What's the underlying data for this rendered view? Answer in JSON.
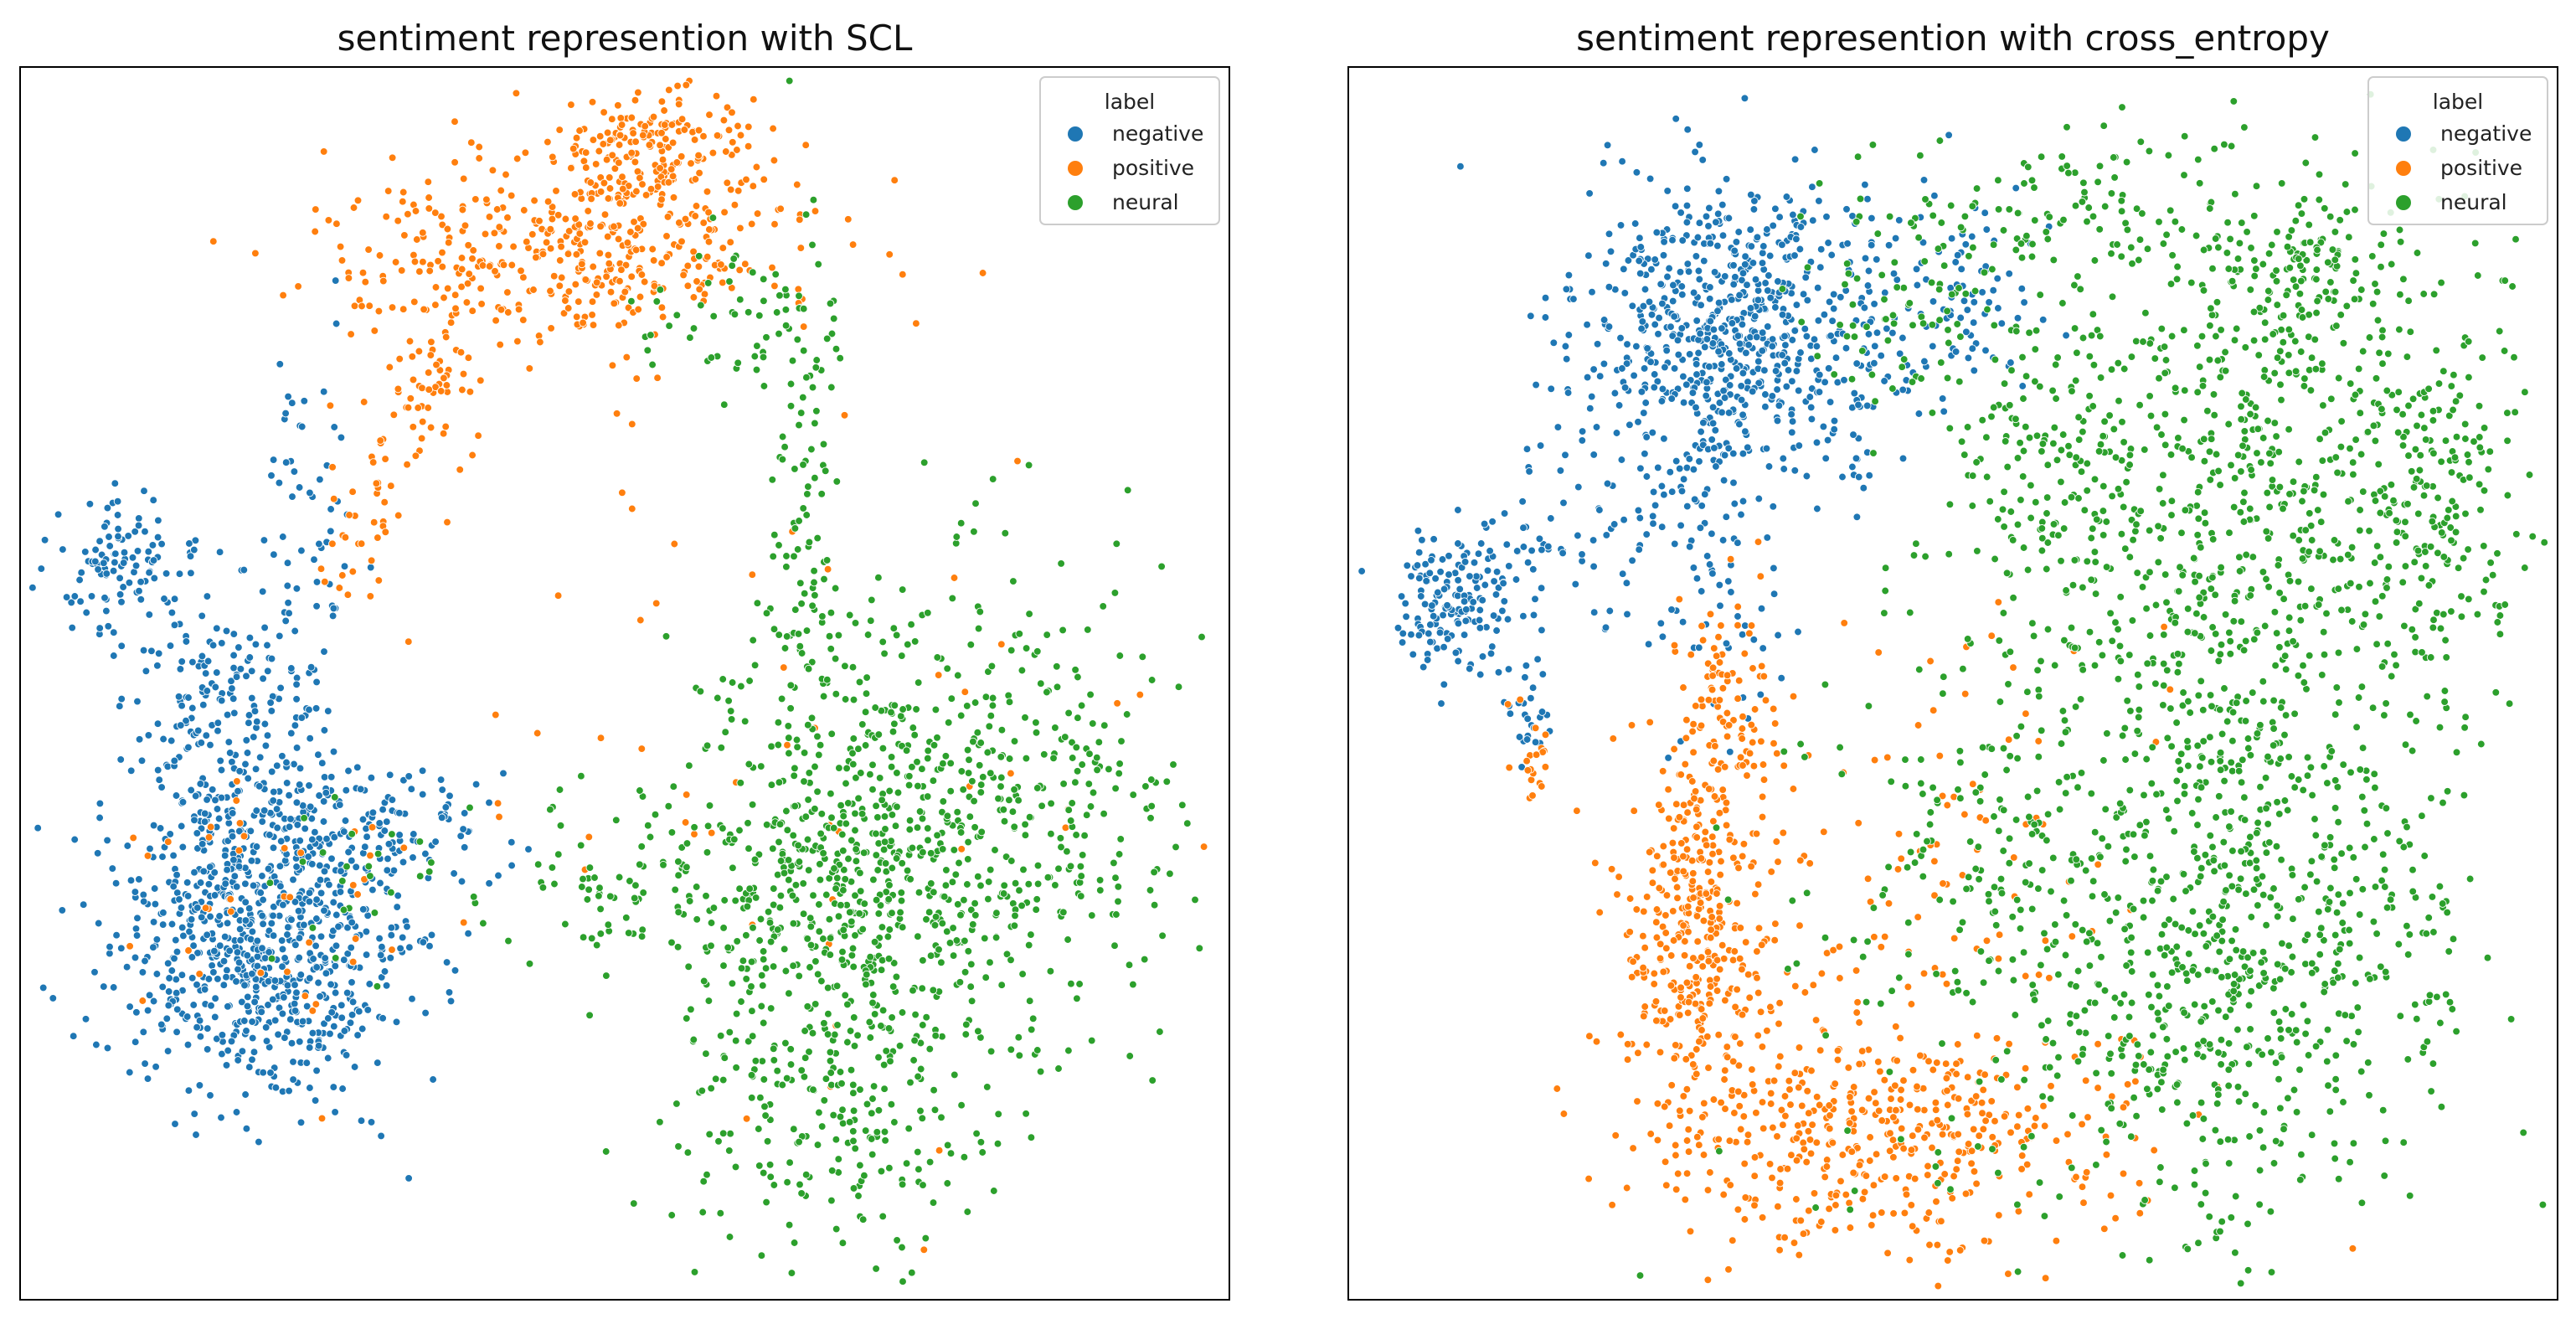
{
  "chart_data": [
    {
      "type": "scatter",
      "title": "sentiment represention with SCL",
      "xlabel": "",
      "ylabel": "",
      "xlim": [
        0,
        100
      ],
      "ylim": [
        0,
        100
      ],
      "grid": false,
      "ticks": "none",
      "legend": {
        "title": "label",
        "placement": "top-right",
        "entries": [
          {
            "name": "negative",
            "color": "#1f77b4"
          },
          {
            "name": "positive",
            "color": "#ff7f0e"
          },
          {
            "name": "neural",
            "color": "#2ca02c"
          }
        ]
      },
      "series": [
        {
          "name": "negative",
          "color": "#1f77b4",
          "clusters": [
            [
              8,
              59,
              3,
              3,
              110
            ],
            [
              20,
              28,
              6,
              6,
              700
            ],
            [
              16,
              45,
              4,
              8,
              260
            ],
            [
              29,
              38,
              6,
              3,
              160
            ],
            [
              24,
              60,
              2,
              10,
              70
            ]
          ]
        },
        {
          "name": "positive",
          "color": "#ff7f0e",
          "clusters": [
            [
              45,
              85,
              10,
              4,
              420
            ],
            [
              52,
              93,
              4,
              3,
              200
            ],
            [
              34,
              73,
              2,
              3,
              50
            ],
            [
              28,
              63,
              2,
              5,
              40
            ],
            [
              21,
              33,
              6,
              6,
              40
            ],
            [
              63,
              45,
              15,
              15,
              55
            ]
          ]
        },
        {
          "name": "neural",
          "color": "#2ca02c",
          "clusters": [
            [
              79,
              40,
              9,
              9,
              480
            ],
            [
              68,
              22,
              7,
              10,
              480
            ],
            [
              65,
              66,
              1.5,
              12,
              90
            ],
            [
              59,
              80,
              4,
              3,
              50
            ],
            [
              50,
              35,
              5,
              4,
              80
            ],
            [
              66,
              40,
              6,
              9,
              200
            ],
            [
              28,
              33,
              4,
              4,
              25
            ]
          ]
        }
      ]
    },
    {
      "type": "scatter",
      "title": "sentiment represention with cross_entropy",
      "xlabel": "",
      "ylabel": "",
      "xlim": [
        0,
        100
      ],
      "ylim": [
        0,
        100
      ],
      "grid": false,
      "ticks": "none",
      "legend": {
        "title": "label",
        "placement": "top-right",
        "entries": [
          {
            "name": "negative",
            "color": "#1f77b4"
          },
          {
            "name": "positive",
            "color": "#ff7f0e"
          },
          {
            "name": "neural",
            "color": "#2ca02c"
          }
        ]
      },
      "series": [
        {
          "name": "negative",
          "color": "#1f77b4",
          "clusters": [
            [
              32,
              78,
              7,
              6,
              700
            ],
            [
              9,
              57,
              2.5,
              3,
              160
            ],
            [
              16,
              62,
              2.5,
              3,
              40
            ],
            [
              15,
              47,
              1,
              2,
              25
            ],
            [
              28,
              60,
              4,
              6,
              100
            ],
            [
              50,
              81,
              5,
              5,
              90
            ]
          ]
        },
        {
          "name": "positive",
          "color": "#ff7f0e",
          "clusters": [
            [
              29,
              30,
              3,
              7,
              350
            ],
            [
              44,
              13,
              10,
              5,
              450
            ],
            [
              31,
              47,
              2,
              5,
              100
            ],
            [
              15,
              44,
              1,
              2,
              20
            ],
            [
              47,
              36,
              8,
              10,
              120
            ]
          ]
        },
        {
          "name": "neural",
          "color": "#2ca02c",
          "clusters": [
            [
              75,
              32,
              8,
              12,
              650
            ],
            [
              76,
              68,
              10,
              12,
              700
            ],
            [
              58,
              70,
              4,
              10,
              150
            ],
            [
              64,
              25,
              13,
              12,
              250
            ],
            [
              52,
              38,
              6,
              10,
              120
            ],
            [
              58,
              88,
              10,
              3,
              100
            ],
            [
              91,
              65,
              3,
              8,
              120
            ],
            [
              46,
              80,
              4,
              5,
              60
            ],
            [
              79,
              83,
              4,
              3,
              100
            ]
          ]
        }
      ]
    }
  ]
}
